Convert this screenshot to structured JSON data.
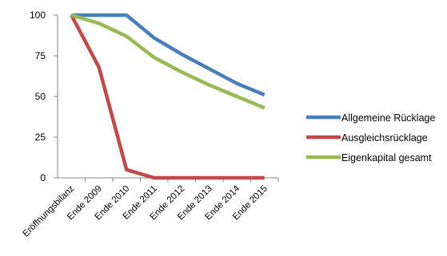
{
  "chart_data": {
    "type": "line",
    "categories": [
      "Eröffnungsbilanz",
      "Ende 2009",
      "Ende 2010",
      "Ende 2011",
      "Ende 2012",
      "Ende 2013",
      "Ende 2014",
      "Ende 2015"
    ],
    "ylim": [
      0,
      100
    ],
    "yticks": [
      "100",
      "75",
      "50",
      "25",
      "0"
    ],
    "grid": false,
    "legend_position": "right",
    "series": [
      {
        "name": "Allgemeine Rücklage",
        "color": "#4a7ebb",
        "values": [
          100,
          100,
          100,
          86,
          76,
          67,
          58,
          51
        ]
      },
      {
        "name": "Ausgleichsrücklage",
        "color": "#be4b48",
        "values": [
          100,
          68,
          5,
          0,
          0,
          0,
          0,
          0
        ]
      },
      {
        "name": "Eigenkapital gesamt",
        "color": "#98b954",
        "values": [
          100,
          95,
          87,
          74,
          65,
          57,
          50,
          43
        ]
      }
    ],
    "title": "",
    "xlabel": "",
    "ylabel": ""
  }
}
